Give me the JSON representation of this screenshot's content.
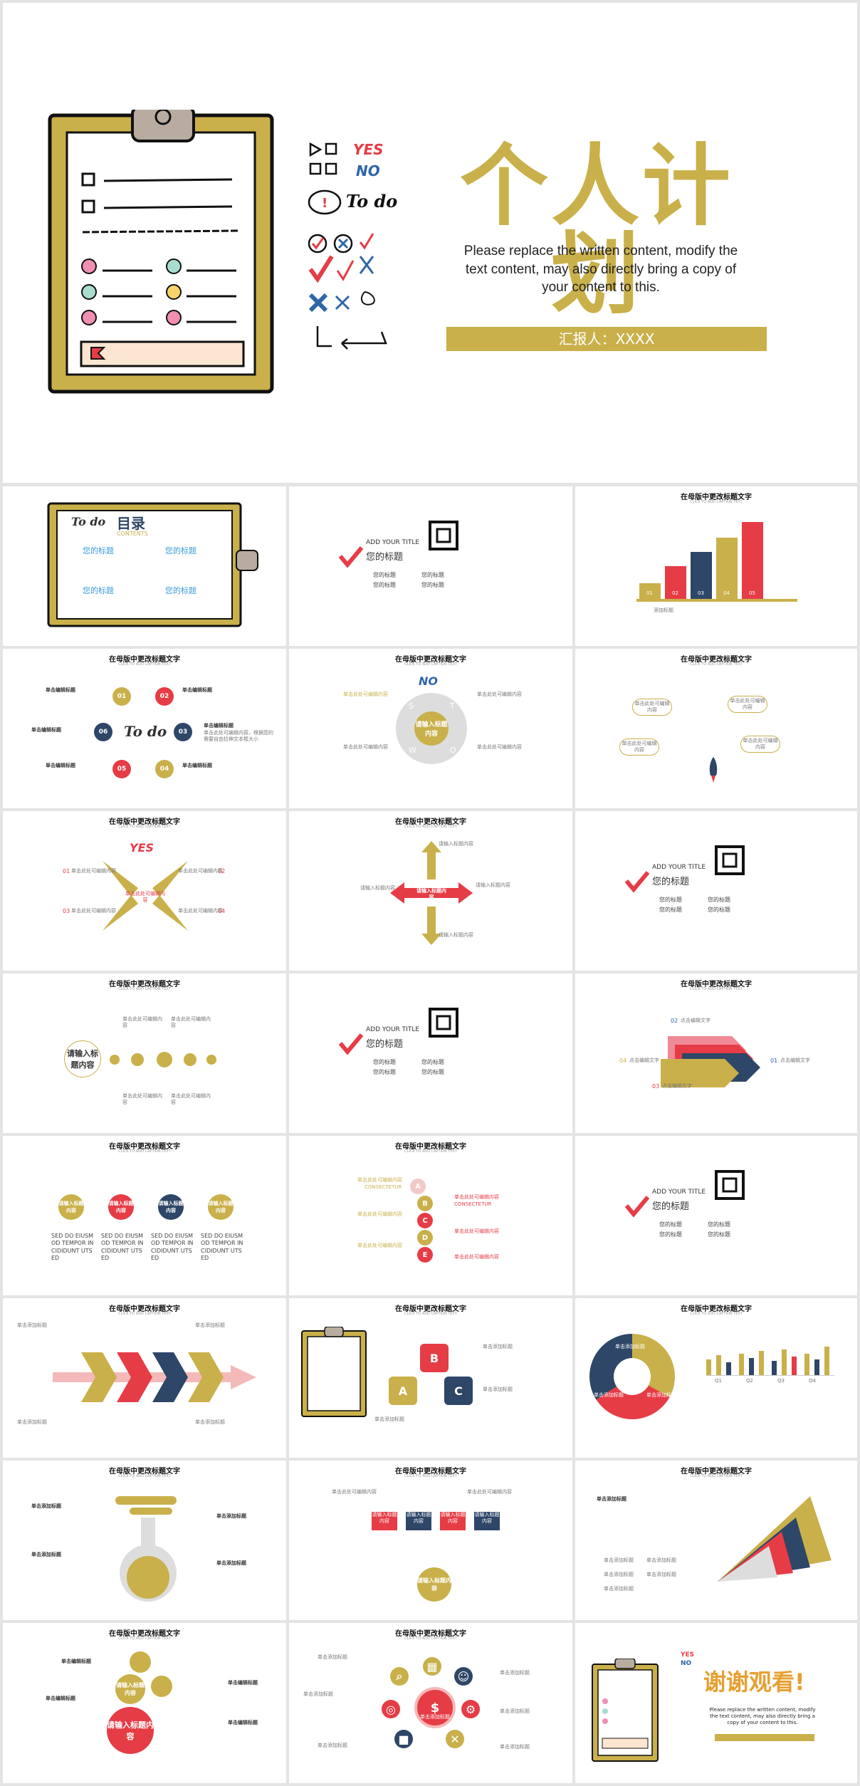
{
  "colors": {
    "gold": "#c9b04a",
    "red": "#e63c46",
    "navy": "#2e4667",
    "grey": "#cfcfcf"
  },
  "cover": {
    "title": "个人计划",
    "subtitle": "Please replace the written content, modify the text content, may also directly bring a copy of your content to this.",
    "reporter": "汇报人：XXXX",
    "yes_label": "YES",
    "no_label": "NO",
    "todo_label": "To do"
  },
  "common": {
    "slide_title": "在母版中更改标题文字",
    "slide_sub": "CLICK TO ADD CAPTION TEXT",
    "add_title": "ADD YOUR TITLE",
    "your_title": "您的标题",
    "your_title_short": "您的标题"
  },
  "toc": {
    "todo": "To do",
    "heading": "目录",
    "contents": "CONTENTS",
    "items": [
      "您的标题",
      "您的标题",
      "您的标题",
      "您的标题"
    ]
  },
  "bar3d": {
    "labels": [
      "01",
      "02",
      "03",
      "04",
      "05"
    ],
    "caption": "添加标题"
  },
  "ring6": {
    "nums": [
      "01",
      "02",
      "03",
      "04",
      "05",
      "06"
    ],
    "item": "单击编辑标题",
    "text": "单击此处可编辑内容，根据您的需要自由拉伸文本框大小"
  },
  "swot": {
    "no": "NO",
    "center": "请输入标题内容",
    "letters": [
      "S",
      "T",
      "W",
      "O"
    ],
    "item": "单击此处可编辑内容"
  },
  "yes_slide": {
    "yes": "YES",
    "nums": [
      "01",
      "02",
      "03",
      "04"
    ],
    "item": "单击此处可编辑内容",
    "center": "单击此处可编辑内容"
  },
  "cross": {
    "center": "请输入标题内容",
    "item": "请输入标题内容"
  },
  "dots": {
    "center": "请输入标题内容",
    "item": "单击此处可编辑内容"
  },
  "arrows": {
    "nums": [
      "01",
      "02",
      "03",
      "04"
    ],
    "item": "点击编辑文字"
  },
  "four_circles": {
    "label": "请输入标题内容",
    "text": "SED DO EIUSM OD TEMPOR IN CIDIDUNT UTS ED"
  },
  "abcde": {
    "letters": [
      "A",
      "B",
      "C",
      "D",
      "E"
    ],
    "left": "单击此处可编辑内容",
    "consectetur": "CONSECTETUR",
    "right": "单击此处可编辑内容"
  },
  "puzzle": {
    "letters": [
      "A",
      "B",
      "C"
    ],
    "item": "单击添加标题"
  },
  "donut": {
    "bar_labels": [
      "Q1",
      "Q2",
      "Q3",
      "Q4"
    ],
    "seg": "单击添加标题"
  },
  "flask": {
    "item": "单击添加标题"
  },
  "boxes": {
    "center": "请输入标题内容",
    "box": "请输入标题内容"
  },
  "fan": {
    "item": "单击添加标题"
  },
  "bubbles": {
    "main": "请输入标题内容",
    "item": "单击编辑标题"
  },
  "hub": {
    "center": "单击添加标题",
    "item": "单击添加标题"
  },
  "thanks": {
    "title": "谢谢观看!",
    "text": "Please replace the written content, modify the text content, may also directly bring a copy of your content to this."
  }
}
